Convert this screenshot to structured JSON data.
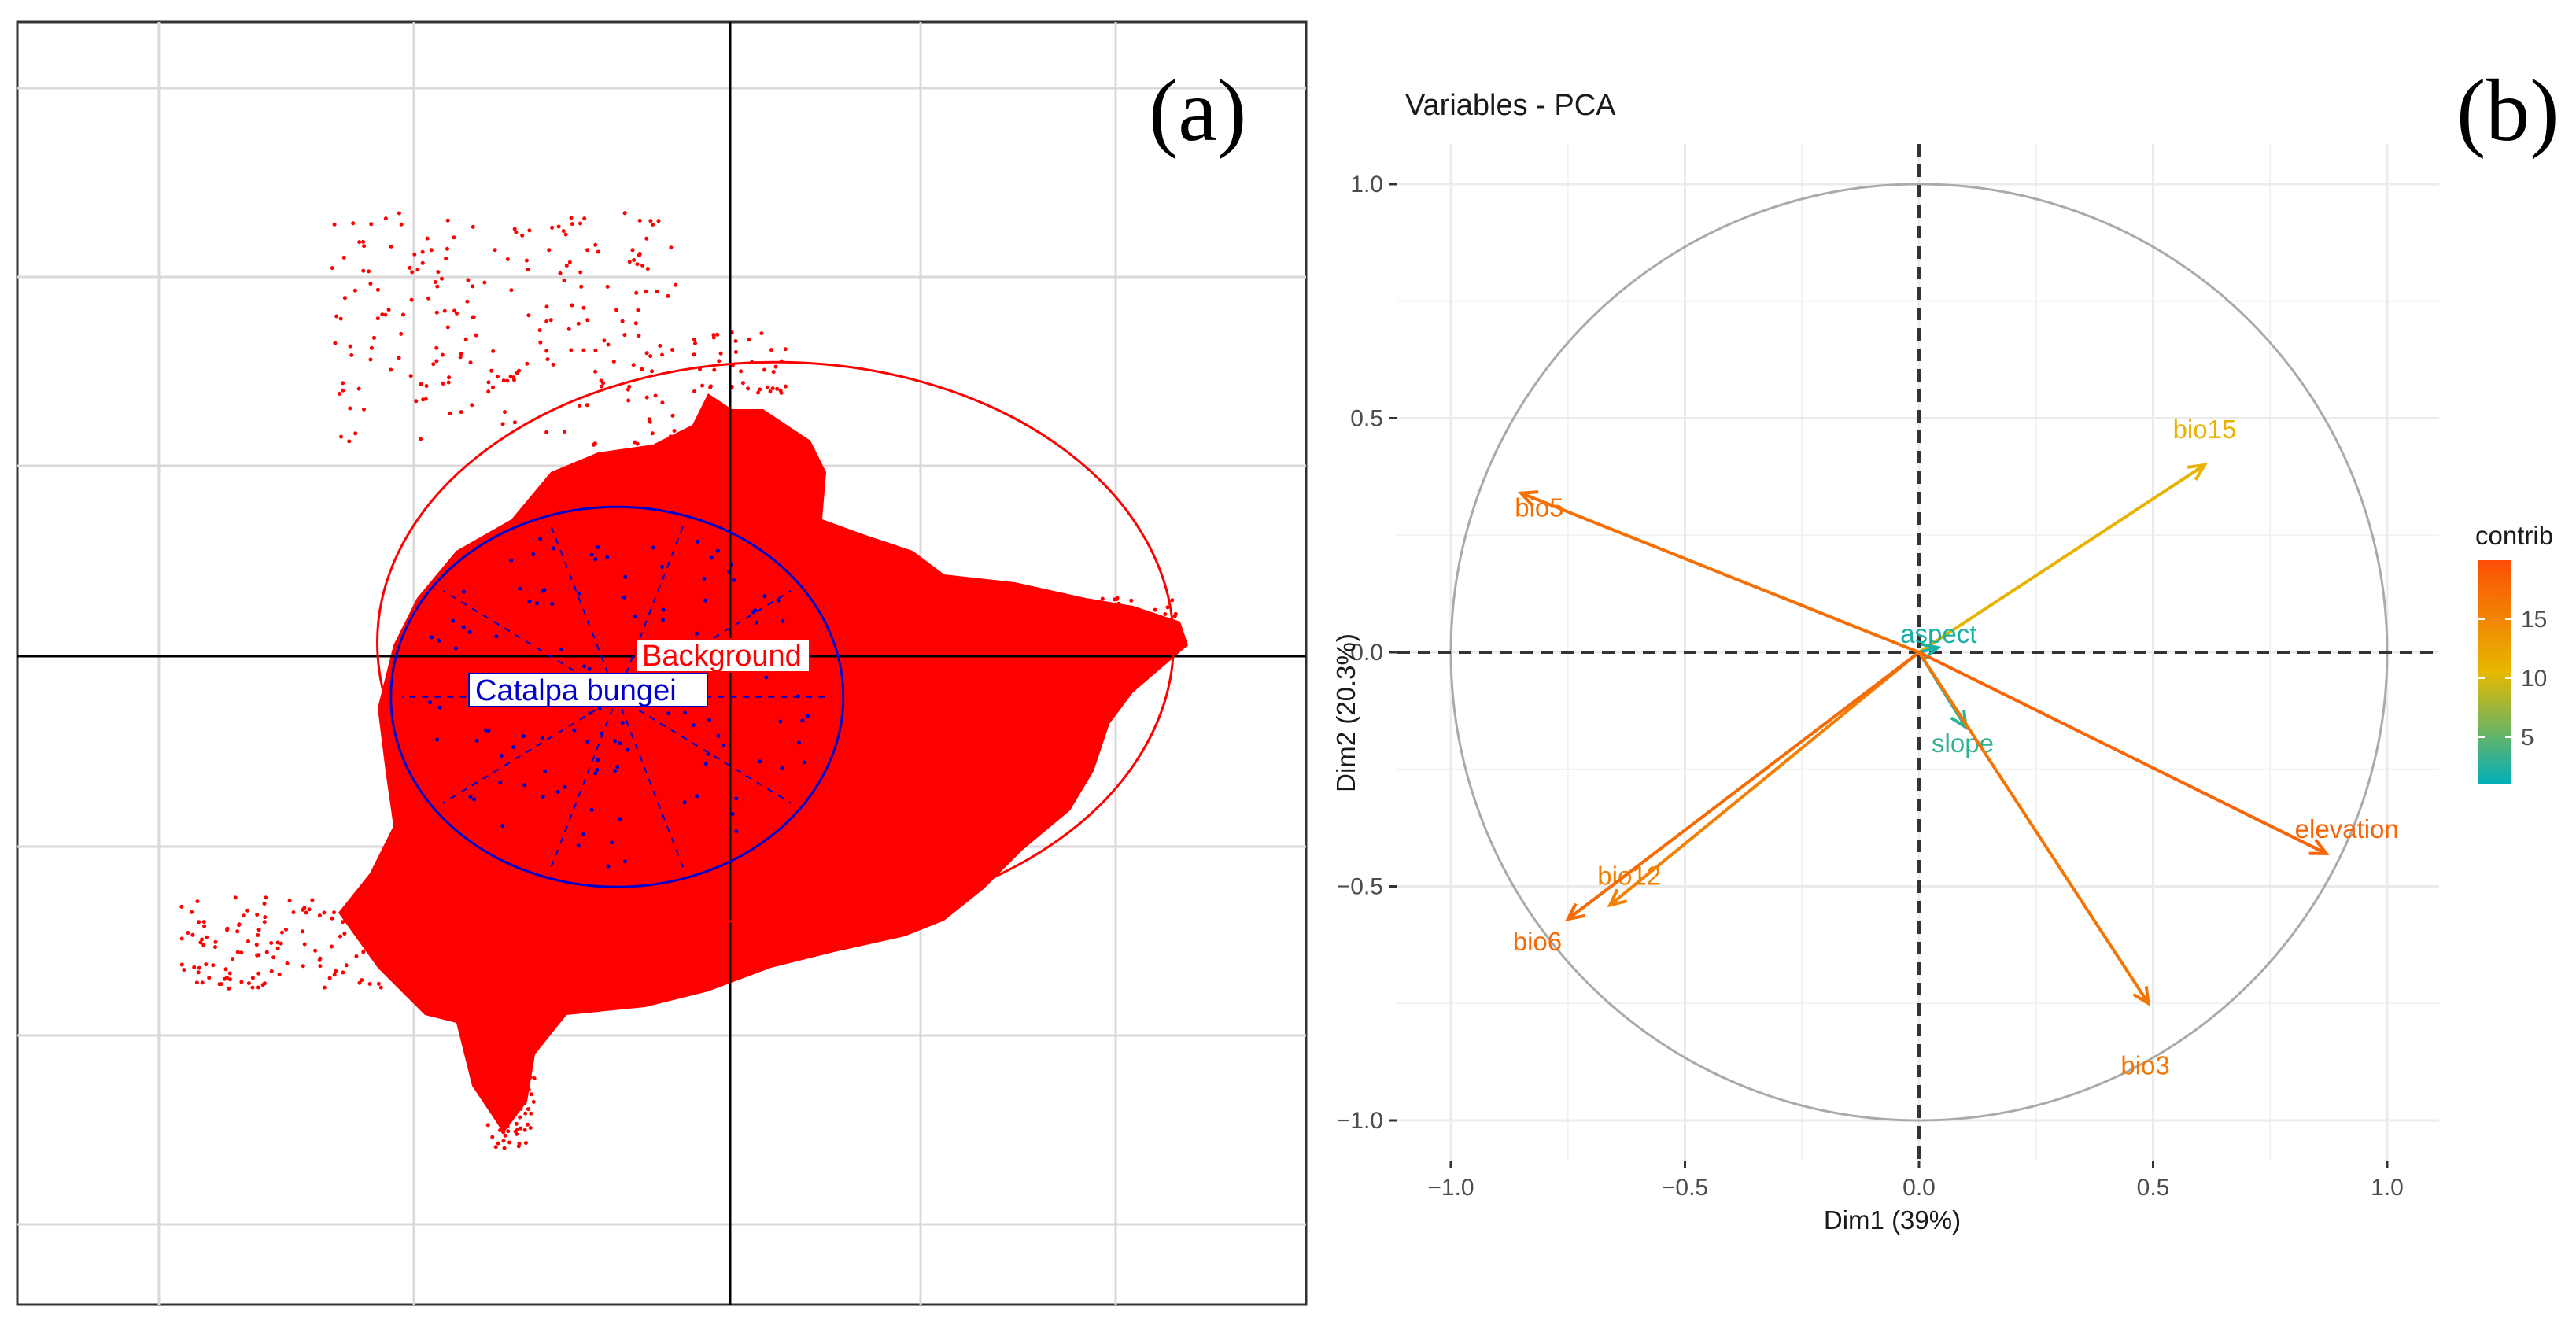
{
  "chart_data": [
    {
      "panel": "(a)",
      "type": "scatter",
      "title": "",
      "xlabel": "",
      "ylabel": "",
      "xlim": [
        -1.5,
        1.5
      ],
      "ylim": [
        -1.5,
        1.5
      ],
      "grid": true,
      "groups": [
        {
          "name": "Background",
          "color": "#ff0000",
          "centroid": [
            0.1,
            0.03
          ],
          "ellipse_rx": 0.88,
          "ellipse_ry": 0.62
        },
        {
          "name": "Catalpa bungei",
          "color": "#0000cc",
          "centroid": [
            -0.25,
            -0.09
          ],
          "ellipse_rx": 0.5,
          "ellipse_ry": 0.42
        }
      ]
    },
    {
      "panel": "(b)",
      "type": "scatter",
      "title": "Variables - PCA",
      "xlabel": "Dim1 (39%)",
      "ylabel": "Dim2 (20.3%)",
      "xlim": [
        -1.1,
        1.1
      ],
      "ylim": [
        -1.1,
        1.1
      ],
      "xticks": [
        -1.0,
        -0.5,
        0.0,
        0.5,
        1.0
      ],
      "xtick_labels": [
        "−1.0",
        "−0.5",
        "0.0",
        "0.5",
        "1.0"
      ],
      "yticks": [
        1.0,
        0.5,
        0.0,
        -0.5,
        -1.0
      ],
      "ytick_labels": [
        "1.0",
        "0.5",
        "0.0",
        "−0.5",
        "−1.0"
      ],
      "grid": true,
      "legend": {
        "title": "contrib",
        "ticks": [
          15,
          10,
          5
        ],
        "tick_labels": [
          "15",
          "10",
          "5"
        ],
        "range": [
          1,
          20
        ],
        "placement": "right"
      },
      "variables": [
        {
          "name": "bio15",
          "x": 0.61,
          "y": 0.4,
          "contrib": 11.0
        },
        {
          "name": "bio5",
          "x": -0.85,
          "y": 0.34,
          "contrib": 17.0
        },
        {
          "name": "aspect",
          "x": 0.04,
          "y": 0.01,
          "contrib": 2.0
        },
        {
          "name": "slope",
          "x": 0.1,
          "y": -0.16,
          "contrib": 3.0
        },
        {
          "name": "elevation",
          "x": 0.87,
          "y": -0.43,
          "contrib": 18.0
        },
        {
          "name": "bio12",
          "x": -0.66,
          "y": -0.54,
          "contrib": 15.5
        },
        {
          "name": "bio6",
          "x": -0.75,
          "y": -0.57,
          "contrib": 17.5
        },
        {
          "name": "bio3",
          "x": 0.49,
          "y": -0.75,
          "contrib": 16.5
        }
      ]
    }
  ]
}
